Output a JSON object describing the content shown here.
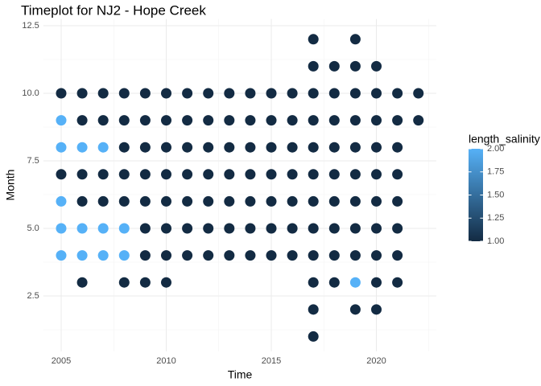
{
  "chart_data": {
    "type": "scatter",
    "title": "Timeplot for NJ2 - Hope Creek",
    "x_label": "Time",
    "y_label": "Month",
    "x": [
      2005,
      2005,
      2005,
      2005,
      2005,
      2005,
      2005,
      2006,
      2006,
      2006,
      2006,
      2006,
      2006,
      2006,
      2006,
      2007,
      2007,
      2007,
      2007,
      2007,
      2007,
      2007,
      2008,
      2008,
      2008,
      2008,
      2008,
      2008,
      2008,
      2008,
      2009,
      2009,
      2009,
      2009,
      2009,
      2009,
      2009,
      2009,
      2010,
      2010,
      2010,
      2010,
      2010,
      2010,
      2010,
      2010,
      2011,
      2011,
      2011,
      2011,
      2011,
      2011,
      2011,
      2012,
      2012,
      2012,
      2012,
      2012,
      2012,
      2012,
      2013,
      2013,
      2013,
      2013,
      2013,
      2013,
      2013,
      2014,
      2014,
      2014,
      2014,
      2014,
      2014,
      2014,
      2015,
      2015,
      2015,
      2015,
      2015,
      2015,
      2015,
      2016,
      2016,
      2016,
      2016,
      2016,
      2016,
      2016,
      2017,
      2017,
      2017,
      2017,
      2017,
      2017,
      2017,
      2017,
      2017,
      2017,
      2017,
      2017,
      2018,
      2018,
      2018,
      2018,
      2018,
      2018,
      2018,
      2018,
      2018,
      2019,
      2019,
      2019,
      2019,
      2019,
      2019,
      2019,
      2019,
      2019,
      2019,
      2019,
      2020,
      2020,
      2020,
      2020,
      2020,
      2020,
      2020,
      2020,
      2020,
      2020,
      2021,
      2021,
      2021,
      2021,
      2021,
      2021,
      2021,
      2021,
      2022,
      2022
    ],
    "values": [
      10,
      9,
      8,
      7,
      6,
      5,
      4,
      10,
      9,
      8,
      7,
      6,
      5,
      4,
      3,
      10,
      9,
      8,
      7,
      6,
      5,
      4,
      10,
      9,
      8,
      7,
      6,
      5,
      4,
      3,
      10,
      9,
      8,
      7,
      6,
      5,
      4,
      3,
      10,
      9,
      8,
      7,
      6,
      5,
      4,
      3,
      10,
      9,
      8,
      7,
      6,
      5,
      4,
      10,
      9,
      8,
      7,
      6,
      5,
      4,
      10,
      9,
      8,
      7,
      6,
      5,
      4,
      10,
      9,
      8,
      7,
      6,
      5,
      4,
      10,
      9,
      8,
      7,
      6,
      5,
      4,
      10,
      9,
      8,
      7,
      6,
      5,
      4,
      12,
      11,
      10,
      9,
      8,
      7,
      6,
      5,
      4,
      3,
      2,
      1,
      11,
      10,
      9,
      8,
      7,
      6,
      5,
      4,
      3,
      12,
      11,
      10,
      9,
      8,
      7,
      6,
      5,
      4,
      3,
      2,
      11,
      10,
      9,
      8,
      7,
      6,
      5,
      4,
      3,
      2,
      10,
      9,
      8,
      7,
      6,
      5,
      4,
      3,
      10,
      9
    ],
    "color_values": [
      1,
      2,
      2,
      1,
      2,
      2,
      2,
      1,
      1,
      2,
      1,
      1,
      2,
      2,
      1,
      1,
      1,
      2,
      1,
      1,
      2,
      2,
      1,
      1,
      1,
      1,
      1,
      2,
      2,
      1,
      1,
      1,
      1,
      1,
      1,
      1,
      1,
      1,
      1,
      1,
      1,
      1,
      1,
      1,
      1,
      1,
      1,
      1,
      1,
      1,
      1,
      1,
      1,
      1,
      1,
      1,
      1,
      1,
      1,
      1,
      1,
      1,
      1,
      1,
      1,
      1,
      1,
      1,
      1,
      1,
      1,
      1,
      1,
      1,
      1,
      1,
      1,
      1,
      1,
      1,
      1,
      1,
      1,
      1,
      1,
      1,
      1,
      1,
      1,
      1,
      1,
      1,
      1,
      1,
      1,
      1,
      1,
      1,
      1,
      1,
      1,
      1,
      1,
      1,
      1,
      1,
      1,
      1,
      1,
      1,
      1,
      1,
      1,
      1,
      1,
      1,
      1,
      1,
      2,
      1,
      1,
      1,
      1,
      1,
      1,
      1,
      1,
      1,
      1,
      1,
      1,
      1,
      1,
      1,
      1,
      1,
      1,
      1,
      1,
      1
    ],
    "xlim": [
      2004.15,
      2022.85
    ],
    "ylim": [
      0.45,
      12.75
    ],
    "xticks": [
      2005,
      2010,
      2015,
      2020
    ],
    "yticks": [
      2.5,
      {
        "value": 5,
        "label": "5.0"
      },
      7.5,
      {
        "value": 10,
        "label": "10.0"
      },
      12.5
    ],
    "grid": true,
    "colorbar": {
      "title": "length_salinity",
      "lim": [
        1,
        2
      ],
      "low_color": "#132B43",
      "high_color": "#56B1F7",
      "ticks": [
        {
          "value": 1,
          "label": "1.00"
        },
        {
          "value": 1.25,
          "label": "1.25"
        },
        {
          "value": 1.5,
          "label": "1.50"
        },
        {
          "value": 1.75,
          "label": "1.75"
        },
        {
          "value": 2,
          "label": "2.00"
        }
      ]
    }
  }
}
